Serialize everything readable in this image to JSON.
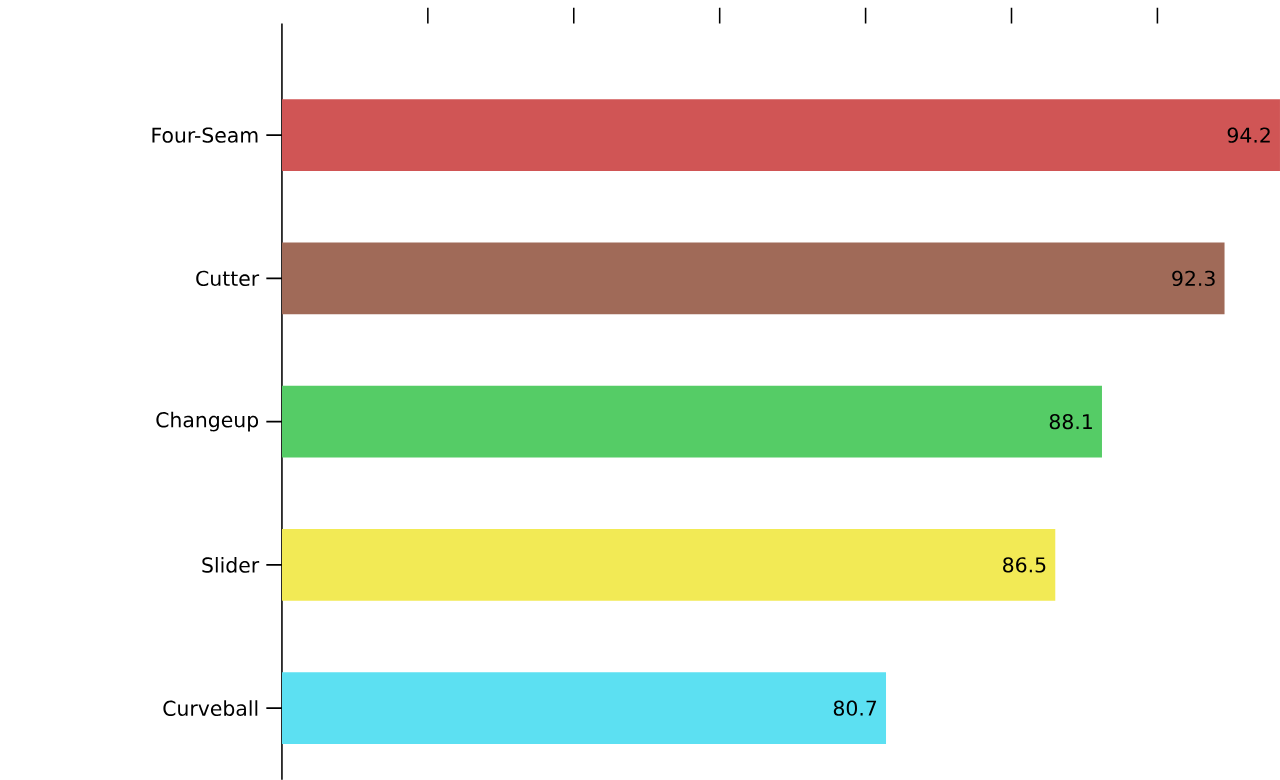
{
  "chart_data": {
    "type": "bar",
    "orientation": "horizontal",
    "categories": [
      "Four-Seam",
      "Cutter",
      "Changeup",
      "Slider",
      "Curveball"
    ],
    "values": [
      94.2,
      92.3,
      88.1,
      86.5,
      80.7
    ],
    "colors": [
      "#d05555",
      "#a06a58",
      "#55cc66",
      "#f2ea55",
      "#5ce0f2"
    ],
    "xlim": [
      60,
      94.2
    ],
    "xticks": [
      {
        "value": 65,
        "label": null
      },
      {
        "value": 70,
        "label": null
      },
      {
        "value": 75,
        "label": null
      },
      {
        "value": 80,
        "label": null
      },
      {
        "value": 85,
        "label": null
      },
      {
        "value": 90,
        "label": null
      }
    ],
    "tick_labels": "y",
    "data_labels": true
  }
}
